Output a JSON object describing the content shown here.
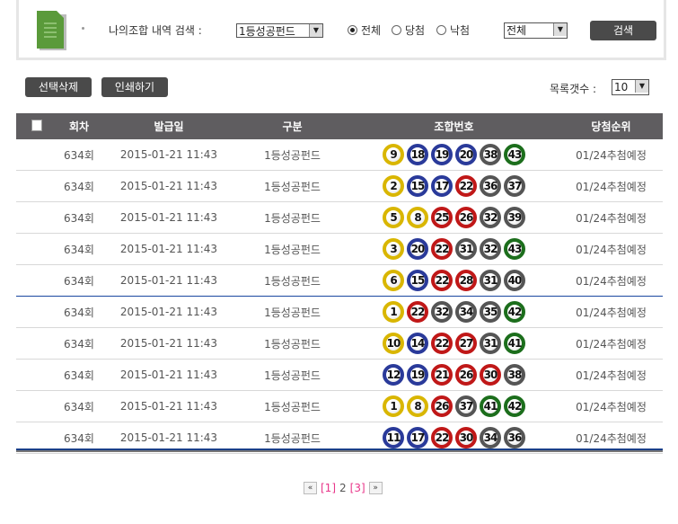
{
  "search": {
    "label": "나의조합 내역 검색 :",
    "type_select": "1등성공펀드",
    "radios": [
      {
        "label": "전체",
        "checked": true
      },
      {
        "label": "당첨",
        "checked": false
      },
      {
        "label": "낙첨",
        "checked": false
      }
    ],
    "range_select": "전체",
    "search_button": "검색"
  },
  "toolbar": {
    "delete_button": "선택삭제",
    "print_button": "인쇄하기",
    "count_label": "목록갯수 :",
    "count_value": "10"
  },
  "table": {
    "headers": [
      "회차",
      "발급일",
      "구분",
      "조합번호",
      "당첨순위"
    ],
    "rows": [
      {
        "round": "634회",
        "date": "2015-01-21 11:43",
        "type": "1등성공펀드",
        "numbers": [
          9,
          18,
          19,
          20,
          38,
          43
        ],
        "result": "01/24추첨예정"
      },
      {
        "round": "634회",
        "date": "2015-01-21 11:43",
        "type": "1등성공펀드",
        "numbers": [
          2,
          15,
          17,
          22,
          36,
          37
        ],
        "result": "01/24추첨예정"
      },
      {
        "round": "634회",
        "date": "2015-01-21 11:43",
        "type": "1등성공펀드",
        "numbers": [
          5,
          8,
          25,
          26,
          32,
          39
        ],
        "result": "01/24추첨예정"
      },
      {
        "round": "634회",
        "date": "2015-01-21 11:43",
        "type": "1등성공펀드",
        "numbers": [
          3,
          20,
          22,
          31,
          32,
          43
        ],
        "result": "01/24추첨예정"
      },
      {
        "round": "634회",
        "date": "2015-01-21 11:43",
        "type": "1등성공펀드",
        "numbers": [
          6,
          15,
          22,
          28,
          31,
          40
        ],
        "result": "01/24추첨예정"
      },
      {
        "round": "634회",
        "date": "2015-01-21 11:43",
        "type": "1등성공펀드",
        "numbers": [
          1,
          22,
          32,
          34,
          35,
          42
        ],
        "result": "01/24추첨예정"
      },
      {
        "round": "634회",
        "date": "2015-01-21 11:43",
        "type": "1등성공펀드",
        "numbers": [
          10,
          14,
          22,
          27,
          31,
          41
        ],
        "result": "01/24추첨예정"
      },
      {
        "round": "634회",
        "date": "2015-01-21 11:43",
        "type": "1등성공펀드",
        "numbers": [
          12,
          19,
          21,
          26,
          30,
          38
        ],
        "result": "01/24추첨예정"
      },
      {
        "round": "634회",
        "date": "2015-01-21 11:43",
        "type": "1등성공펀드",
        "numbers": [
          1,
          8,
          26,
          37,
          41,
          42
        ],
        "result": "01/24추첨예정"
      },
      {
        "round": "634회",
        "date": "2015-01-21 11:43",
        "type": "1등성공펀드",
        "numbers": [
          11,
          17,
          22,
          30,
          34,
          36
        ],
        "result": "01/24추첨예정"
      }
    ]
  },
  "ball_colors": {
    "1-10": "#d9b600",
    "11-20": "#2a3a9a",
    "21-30": "#c01818",
    "31-40": "#555555",
    "41-45": "#1c6e1c"
  },
  "pager": {
    "prev": "«",
    "pages": [
      "[1]",
      "2",
      "[3]"
    ],
    "current": "2",
    "next": "»",
    "link_color": "#e8368a"
  }
}
